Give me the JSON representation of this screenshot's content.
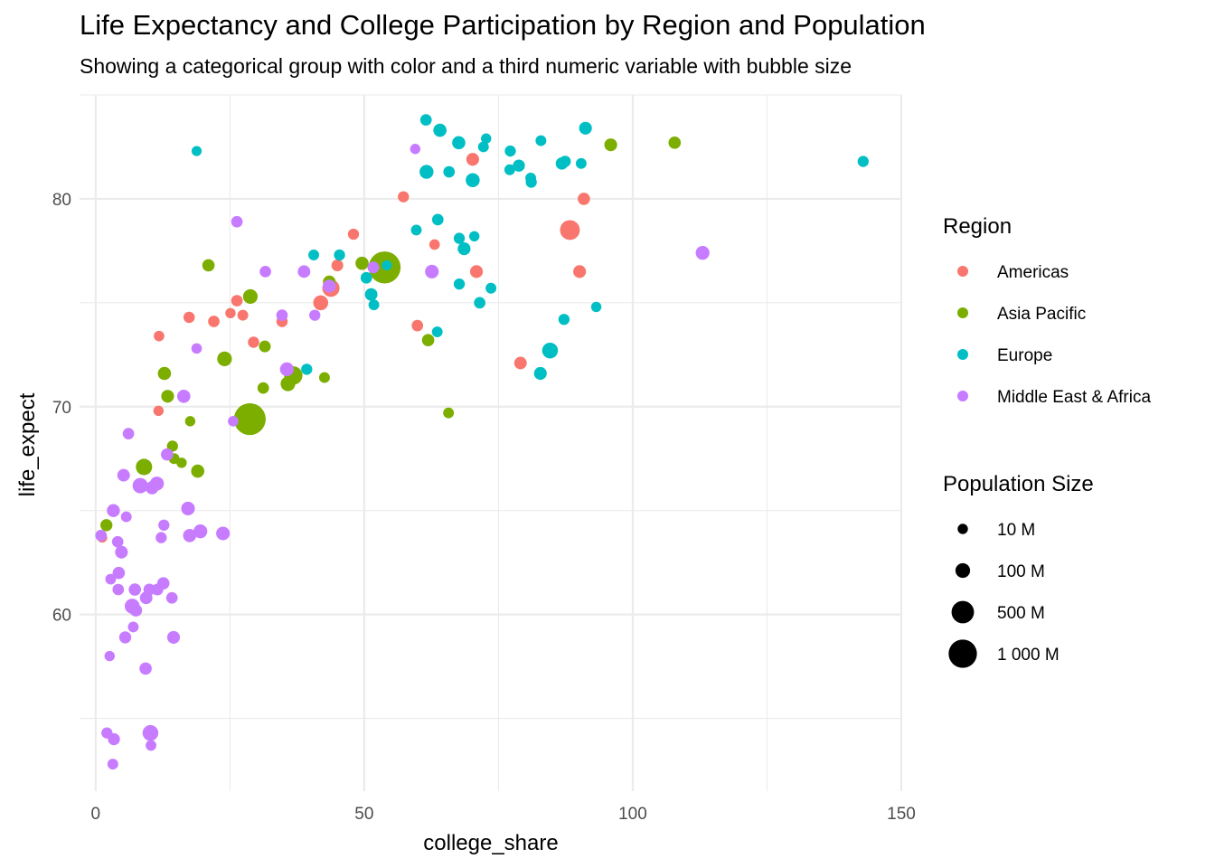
{
  "title": "Life Expectancy and College Participation by Region and Population",
  "subtitle": "Showing a categorical group with color and a third numeric variable with bubble size",
  "chart_data": {
    "type": "scatter",
    "title": "Life Expectancy and College Participation by Region and Population",
    "subtitle": "Showing a categorical group with color and a third numeric variable with bubble size",
    "xlabel": "college_share",
    "ylabel": "life_expect",
    "xlim": [
      -3,
      150
    ],
    "ylim": [
      51.5,
      85
    ],
    "x_ticks": [
      0,
      50,
      100,
      150
    ],
    "y_ticks": [
      60,
      70,
      80
    ],
    "grid": true,
    "legend_placement": "right",
    "color_legend": {
      "title": "Region",
      "entries": [
        {
          "name": "Americas",
          "color": "#F8766D"
        },
        {
          "name": "Asia Pacific",
          "color": "#7CAE00"
        },
        {
          "name": "Europe",
          "color": "#00BFC4"
        },
        {
          "name": "Middle East & Africa",
          "color": "#C77CFF"
        }
      ]
    },
    "size_legend": {
      "title": "Population Size",
      "entries": [
        {
          "label": "10 M",
          "value": 10
        },
        {
          "label": "100 M",
          "value": 100
        },
        {
          "label": "500 M",
          "value": 500
        },
        {
          "label": "1 000 M",
          "value": 1000
        }
      ]
    },
    "series": [
      {
        "name": "Americas",
        "color": "#F8766D",
        "points": [
          [
            1.2,
            63.7,
            8
          ],
          [
            11.8,
            73.4,
            12
          ],
          [
            11.7,
            69.8,
            10
          ],
          [
            17.4,
            74.3,
            22
          ],
          [
            22.0,
            74.1,
            25
          ],
          [
            25.1,
            74.5,
            10
          ],
          [
            26.3,
            75.1,
            25
          ],
          [
            27.4,
            74.4,
            15
          ],
          [
            29.4,
            73.1,
            22
          ],
          [
            34.7,
            74.1,
            22
          ],
          [
            41.9,
            75.0,
            110
          ],
          [
            43.8,
            75.7,
            200
          ],
          [
            45.0,
            76.8,
            30
          ],
          [
            48.0,
            78.3,
            20
          ],
          [
            53.9,
            77.0,
            45
          ],
          [
            57.3,
            80.1,
            20
          ],
          [
            59.9,
            73.9,
            25
          ],
          [
            63.1,
            77.8,
            12
          ],
          [
            70.2,
            81.9,
            50
          ],
          [
            70.9,
            76.5,
            50
          ],
          [
            79.1,
            72.1,
            45
          ],
          [
            88.3,
            78.5,
            330
          ],
          [
            90.1,
            76.5,
            50
          ],
          [
            90.9,
            80.0,
            40
          ]
        ]
      },
      {
        "name": "Asia Pacific",
        "color": "#7CAE00",
        "points": [
          [
            2.0,
            64.3,
            35
          ],
          [
            9.0,
            67.1,
            160
          ],
          [
            12.8,
            71.6,
            60
          ],
          [
            13.4,
            70.5,
            50
          ],
          [
            14.3,
            68.1,
            20
          ],
          [
            14.6,
            67.5,
            15
          ],
          [
            16.0,
            67.3,
            10
          ],
          [
            17.6,
            69.3,
            10
          ],
          [
            19.0,
            66.9,
            60
          ],
          [
            21.0,
            76.8,
            40
          ],
          [
            24.0,
            72.3,
            100
          ],
          [
            28.7,
            69.4,
            1380
          ],
          [
            28.8,
            75.3,
            100
          ],
          [
            31.2,
            70.9,
            25
          ],
          [
            31.5,
            72.9,
            30
          ],
          [
            35.8,
            71.1,
            100
          ],
          [
            36.8,
            71.5,
            250
          ],
          [
            42.6,
            71.4,
            15
          ],
          [
            43.5,
            76.0,
            50
          ],
          [
            49.6,
            76.9,
            60
          ],
          [
            53.8,
            76.7,
            1400
          ],
          [
            61.9,
            73.2,
            40
          ],
          [
            65.7,
            69.7,
            15
          ],
          [
            95.9,
            82.6,
            50
          ],
          [
            107.8,
            82.7,
            40
          ]
        ]
      },
      {
        "name": "Europe",
        "color": "#00BFC4",
        "points": [
          [
            18.8,
            82.3,
            8
          ],
          [
            39.3,
            71.8,
            20
          ],
          [
            40.6,
            77.3,
            15
          ],
          [
            45.4,
            77.3,
            20
          ],
          [
            50.4,
            76.2,
            25
          ],
          [
            51.3,
            75.4,
            45
          ],
          [
            51.8,
            74.9,
            15
          ],
          [
            54.2,
            76.8,
            8
          ],
          [
            59.7,
            78.5,
            15
          ],
          [
            61.5,
            83.8,
            25
          ],
          [
            61.6,
            81.3,
            80
          ],
          [
            63.6,
            73.6,
            15
          ],
          [
            63.7,
            79.0,
            25
          ],
          [
            64.1,
            83.3,
            60
          ],
          [
            65.8,
            81.3,
            25
          ],
          [
            67.6,
            82.7,
            60
          ],
          [
            67.7,
            78.1,
            20
          ],
          [
            67.7,
            75.9,
            20
          ],
          [
            68.6,
            77.6,
            50
          ],
          [
            70.2,
            80.9,
            80
          ],
          [
            70.5,
            78.2,
            10
          ],
          [
            71.5,
            75.0,
            25
          ],
          [
            72.2,
            82.5,
            15
          ],
          [
            72.7,
            82.9,
            10
          ],
          [
            73.6,
            75.7,
            15
          ],
          [
            77.1,
            81.4,
            15
          ],
          [
            77.2,
            82.3,
            20
          ],
          [
            78.8,
            81.6,
            35
          ],
          [
            81.0,
            81.0,
            15
          ],
          [
            81.1,
            80.8,
            20
          ],
          [
            82.8,
            71.6,
            50
          ],
          [
            82.9,
            82.8,
            15
          ],
          [
            84.6,
            72.7,
            140
          ],
          [
            86.8,
            81.7,
            40
          ],
          [
            87.2,
            74.2,
            20
          ],
          [
            87.4,
            81.8,
            25
          ],
          [
            90.4,
            81.7,
            15
          ],
          [
            91.2,
            83.4,
            50
          ],
          [
            93.2,
            74.8,
            10
          ],
          [
            142.9,
            81.8,
            20
          ]
        ]
      },
      {
        "name": "Middle East & Africa",
        "color": "#C77CFF",
        "points": [
          [
            1.0,
            63.8,
            25
          ],
          [
            2.1,
            54.3,
            20
          ],
          [
            2.6,
            58.0,
            10
          ],
          [
            2.8,
            61.7,
            15
          ],
          [
            3.2,
            52.8,
            15
          ],
          [
            3.3,
            65.0,
            55
          ],
          [
            3.4,
            54.0,
            35
          ],
          [
            4.1,
            63.5,
            25
          ],
          [
            4.2,
            61.2,
            25
          ],
          [
            4.3,
            62.0,
            40
          ],
          [
            4.8,
            63.0,
            50
          ],
          [
            5.2,
            66.7,
            45
          ],
          [
            5.5,
            58.9,
            35
          ],
          [
            5.7,
            64.7,
            15
          ],
          [
            6.1,
            68.7,
            25
          ],
          [
            6.8,
            60.4,
            110
          ],
          [
            7.0,
            59.4,
            15
          ],
          [
            7.3,
            61.2,
            40
          ],
          [
            7.5,
            60.2,
            40
          ],
          [
            8.3,
            66.2,
            125
          ],
          [
            9.3,
            57.4,
            40
          ],
          [
            9.4,
            60.8,
            45
          ],
          [
            10.0,
            61.2,
            30
          ],
          [
            10.2,
            54.3,
            140
          ],
          [
            10.3,
            53.7,
            15
          ],
          [
            10.5,
            66.1,
            60
          ],
          [
            11.4,
            66.3,
            80
          ],
          [
            11.5,
            61.2,
            30
          ],
          [
            12.2,
            63.7,
            20
          ],
          [
            12.6,
            61.5,
            40
          ],
          [
            12.7,
            64.3,
            20
          ],
          [
            13.3,
            67.7,
            40
          ],
          [
            14.2,
            60.8,
            25
          ],
          [
            14.5,
            58.9,
            50
          ],
          [
            16.4,
            70.5,
            60
          ],
          [
            17.2,
            65.1,
            70
          ],
          [
            17.5,
            63.8,
            60
          ],
          [
            18.8,
            72.8,
            12
          ],
          [
            19.5,
            64.0,
            75
          ],
          [
            23.7,
            63.9,
            70
          ],
          [
            25.6,
            69.3,
            12
          ],
          [
            26.3,
            78.9,
            25
          ],
          [
            31.6,
            76.5,
            25
          ],
          [
            34.7,
            74.4,
            25
          ],
          [
            35.6,
            71.8,
            75
          ],
          [
            38.8,
            76.5,
            45
          ],
          [
            40.8,
            74.4,
            20
          ],
          [
            43.5,
            75.8,
            55
          ],
          [
            51.7,
            76.7,
            30
          ],
          [
            59.5,
            82.4,
            10
          ],
          [
            62.6,
            76.5,
            70
          ],
          [
            113.0,
            77.4,
            75
          ]
        ]
      }
    ]
  }
}
